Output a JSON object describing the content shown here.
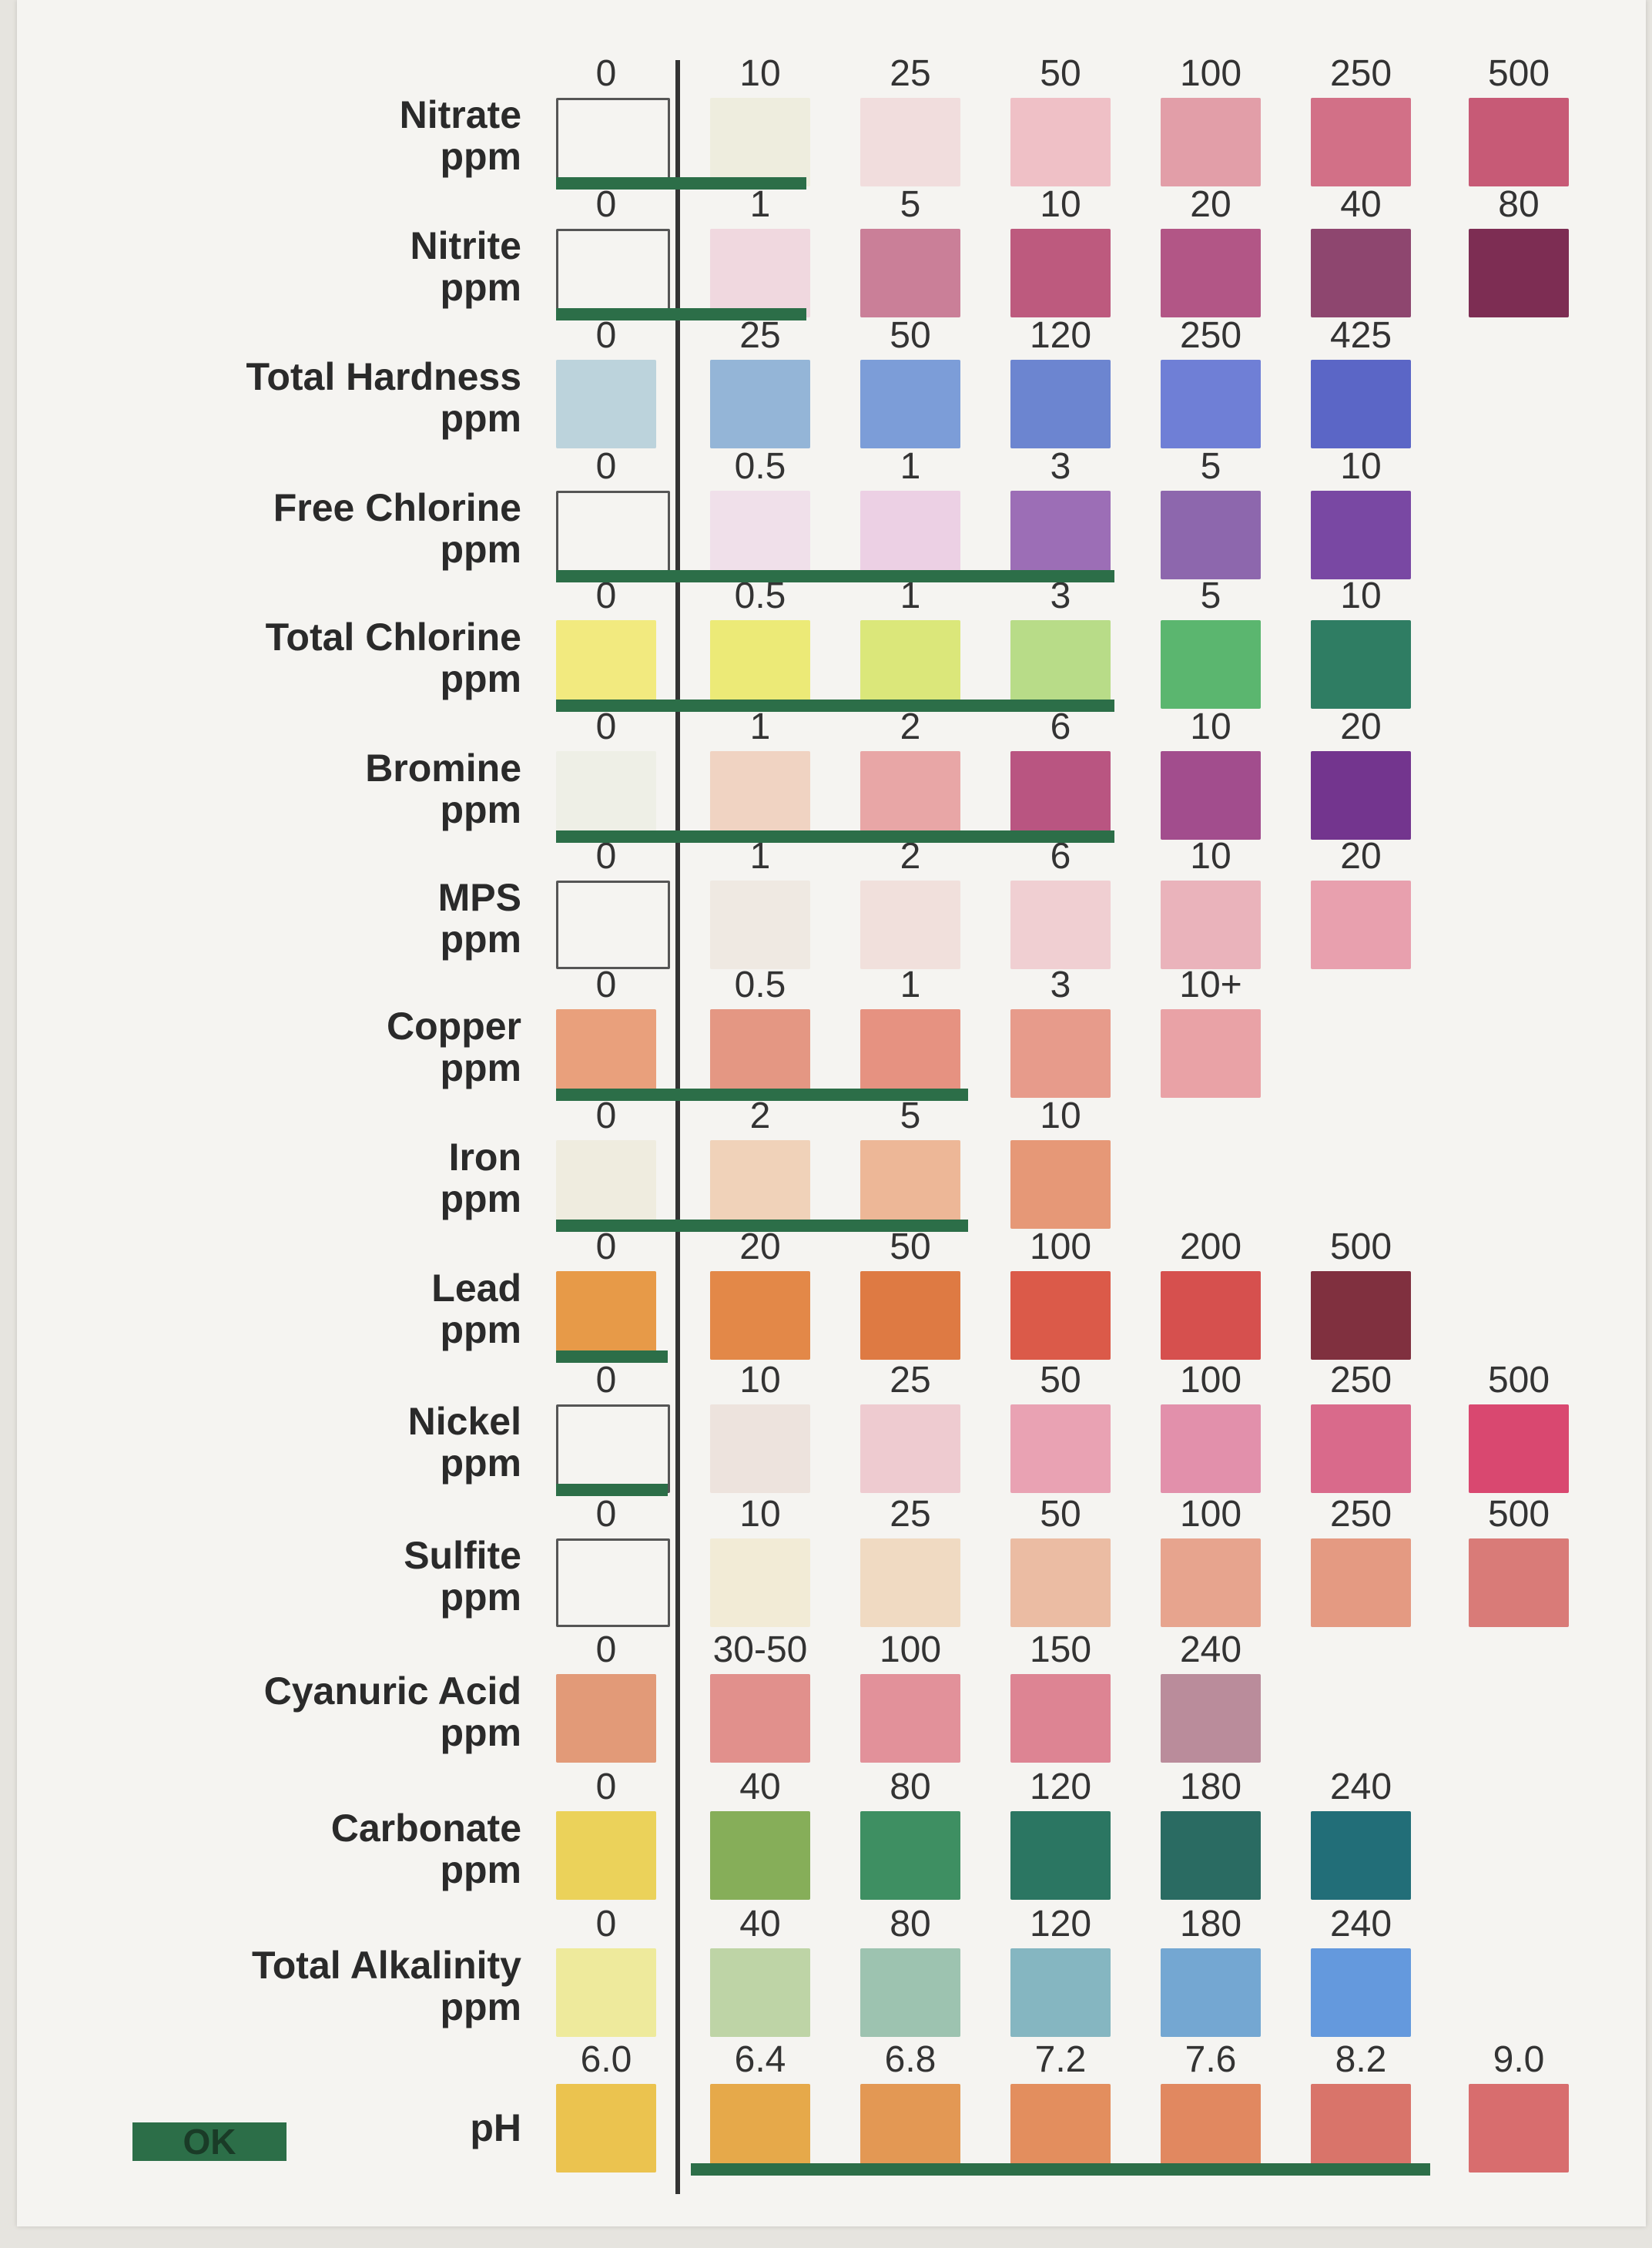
{
  "ok_label": "OK",
  "rows": [
    {
      "name": "Nitrate",
      "unit": "ppm",
      "values": [
        "0",
        "10",
        "25",
        "50",
        "100",
        "250",
        "500"
      ],
      "colors": [
        "#f5f4f1",
        "#eeedde",
        "#f1dddd",
        "#efc0c6",
        "#e29ea8",
        "#d27087",
        "#c75a76"
      ]
    },
    {
      "name": "Nitrite",
      "unit": "ppm",
      "values": [
        "0",
        "1",
        "5",
        "10",
        "20",
        "40",
        "80"
      ],
      "colors": [
        "#f5f4f1",
        "#f0d8df",
        "#ca7f98",
        "#bd5a7e",
        "#b25686",
        "#8e466f",
        "#7d2d53"
      ]
    },
    {
      "name": "Total Hardness",
      "unit": "ppm",
      "values": [
        "0",
        "25",
        "50",
        "120",
        "250",
        "425",
        ""
      ],
      "colors": [
        "#bcd3dc",
        "#94b5d7",
        "#7c9dd8",
        "#6c85d0",
        "#6f7fd6",
        "#5b66c6",
        ""
      ]
    },
    {
      "name": "Free Chlorine",
      "unit": "ppm",
      "values": [
        "0",
        "0.5",
        "1",
        "3",
        "5",
        "10",
        ""
      ],
      "colors": [
        "#f5f4f1",
        "#f0e0ea",
        "#ecd0e4",
        "#9c6eb6",
        "#8d67ad",
        "#7948a3",
        ""
      ]
    },
    {
      "name": "Total Chlorine",
      "unit": "ppm",
      "values": [
        "0",
        "0.5",
        "1",
        "3",
        "5",
        "10",
        ""
      ],
      "colors": [
        "#f2ea7f",
        "#ecea77",
        "#dbe77a",
        "#b8dc88",
        "#5bb66f",
        "#2f7d63",
        ""
      ]
    },
    {
      "name": "Bromine",
      "unit": "ppm",
      "values": [
        "0",
        "1",
        "2",
        "6",
        "10",
        "20",
        ""
      ],
      "colors": [
        "#eeefe6",
        "#f0d3c2",
        "#e8a6a6",
        "#b95581",
        "#a24d8d",
        "#73358e",
        ""
      ]
    },
    {
      "name": "MPS",
      "unit": "ppm",
      "values": [
        "0",
        "1",
        "2",
        "6",
        "10",
        "20",
        ""
      ],
      "colors": [
        "#f5f4f1",
        "#efe9e2",
        "#f1e0dc",
        "#f0cfd2",
        "#eab3bb",
        "#e8a0ae",
        ""
      ]
    },
    {
      "name": "Copper",
      "unit": "ppm",
      "values": [
        "0",
        "0.5",
        "1",
        "3",
        "10+",
        "",
        ""
      ],
      "colors": [
        "#e9a07c",
        "#e49783",
        "#e69281",
        "#e79b8b",
        "#e9a2a6",
        "",
        ""
      ]
    },
    {
      "name": "Iron",
      "unit": "ppm",
      "values": [
        "0",
        "2",
        "5",
        "10",
        "",
        "",
        ""
      ],
      "colors": [
        "#efecdf",
        "#f0d2b9",
        "#edb797",
        "#e69877",
        "",
        "",
        ""
      ]
    },
    {
      "name": "Lead",
      "unit": "ppm",
      "values": [
        "0",
        "20",
        "50",
        "100",
        "200",
        "500",
        ""
      ],
      "colors": [
        "#e79a48",
        "#e38848",
        "#de7a43",
        "#db5a49",
        "#d6504e",
        "#80303f",
        ""
      ]
    },
    {
      "name": "Nickel",
      "unit": "ppm",
      "values": [
        "0",
        "10",
        "25",
        "50",
        "100",
        "250",
        "500"
      ],
      "colors": [
        "#f5f4f1",
        "#ede3dd",
        "#eecbd0",
        "#e9a2b3",
        "#e290ab",
        "#d96a8b",
        "#d94870"
      ]
    },
    {
      "name": "Sulfite",
      "unit": "ppm",
      "values": [
        "0",
        "10",
        "25",
        "50",
        "100",
        "250",
        "500"
      ],
      "colors": [
        "#f5f4f1",
        "#f2ebd6",
        "#f0dac2",
        "#ebbca3",
        "#e7a48e",
        "#e49a82",
        "#d97b78"
      ]
    },
    {
      "name": "Cyanuric Acid",
      "unit": "ppm",
      "values": [
        "0",
        "30-50",
        "100",
        "150",
        "240",
        "",
        ""
      ],
      "colors": [
        "#e29a78",
        "#e1908c",
        "#e2919a",
        "#dd8493",
        "#ba8c9b",
        "",
        ""
      ]
    },
    {
      "name": "Carbonate",
      "unit": "ppm",
      "values": [
        "0",
        "40",
        "80",
        "120",
        "180",
        "240",
        ""
      ],
      "colors": [
        "#ebd25a",
        "#86ae59",
        "#3e8f62",
        "#2b7662",
        "#2a6b62",
        "#226e78",
        ""
      ]
    },
    {
      "name": "Total Alkalinity",
      "unit": "ppm",
      "values": [
        "0",
        "40",
        "80",
        "120",
        "180",
        "240",
        ""
      ],
      "colors": [
        "#eeea9c",
        "#bed4a6",
        "#9dc3b0",
        "#85b6c1",
        "#74a7d2",
        "#6499dd",
        ""
      ]
    },
    {
      "name": "",
      "unit": "pH",
      "values": [
        "6.0",
        "6.4",
        "6.8",
        "7.2",
        "7.6",
        "8.2",
        "9.0"
      ],
      "colors": [
        "#ebc34f",
        "#e6a94a",
        "#e39854",
        "#e38e5e",
        "#e18860",
        "#d9746a",
        "#d86d6e"
      ]
    }
  ]
}
